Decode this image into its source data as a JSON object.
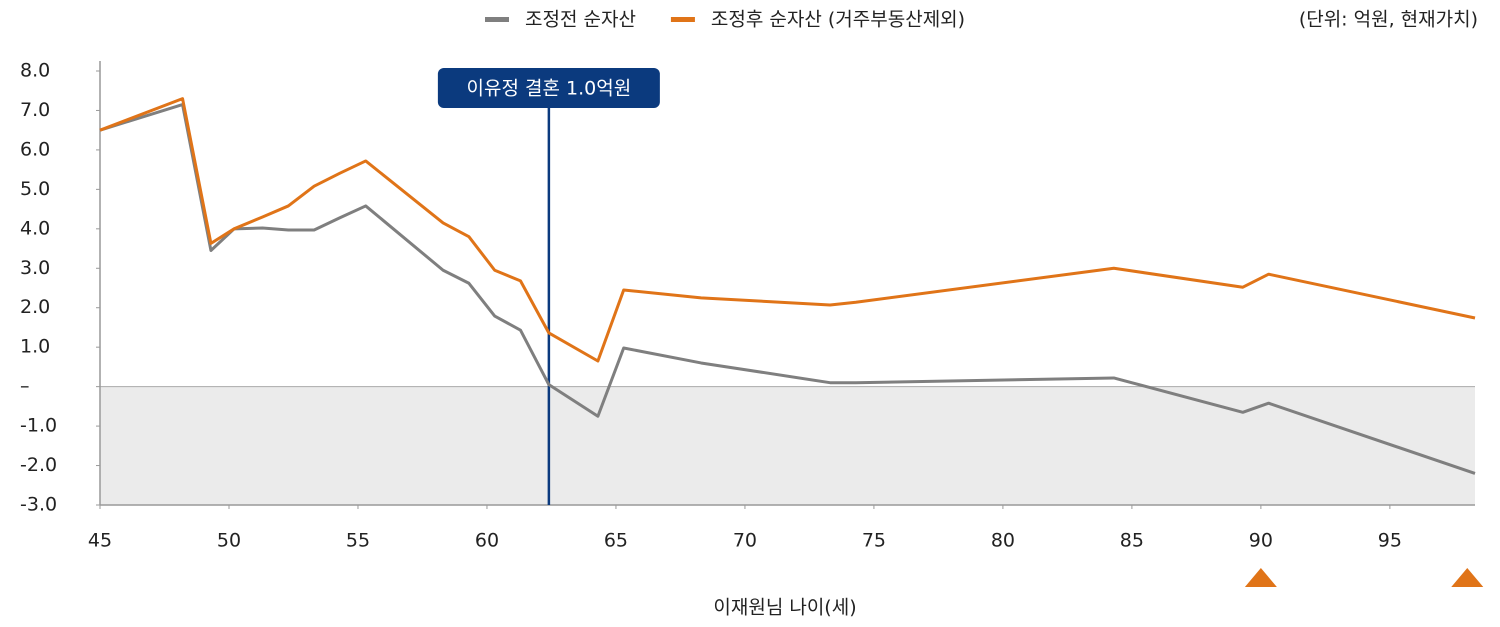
{
  "chart_data": {
    "type": "line",
    "unit_note": "(단위: 억원, 현재가치)",
    "x_label": "이재원님 나이(세)",
    "x": [
      45,
      48.2,
      49.3,
      50.2,
      51.3,
      52.3,
      53.3,
      54.3,
      55.3,
      58.3,
      59.3,
      60.3,
      61.3,
      62.4,
      64.3,
      65.3,
      68.3,
      73.3,
      74.3,
      84.3,
      89.3,
      90.3,
      98.3
    ],
    "series": [
      {
        "name": "조정전 순자산",
        "color": "#7f7f7f",
        "values": [
          6.5,
          7.15,
          3.45,
          4.0,
          4.02,
          3.97,
          3.97,
          4.28,
          4.58,
          2.95,
          2.62,
          1.79,
          1.43,
          0.05,
          -0.75,
          0.98,
          0.6,
          0.1,
          0.1,
          0.22,
          -0.65,
          -0.42,
          -2.2
        ]
      },
      {
        "name": "조정후 순자산 (거주부동산제외)",
        "color": "#e07418",
        "values": [
          6.5,
          7.3,
          3.63,
          4.0,
          4.3,
          4.58,
          5.08,
          5.41,
          5.72,
          4.15,
          3.8,
          2.95,
          2.68,
          1.36,
          0.65,
          2.45,
          2.25,
          2.07,
          2.14,
          3.0,
          2.52,
          2.85,
          1.74
        ]
      }
    ],
    "annotation": {
      "x": 62.4,
      "text": "이유정 결혼 1.0억원"
    },
    "event_markers": [
      90,
      98
    ],
    "xlim": [
      45,
      98.3
    ],
    "xticks": [
      45,
      50,
      55,
      60,
      65,
      70,
      75,
      80,
      85,
      90,
      95
    ],
    "ylim": [
      -3,
      8
    ],
    "yticks": [
      {
        "value": -3,
        "label": "-3.0"
      },
      {
        "value": -2,
        "label": "-2.0"
      },
      {
        "value": -1,
        "label": "-1.0"
      },
      {
        "value": 0,
        "label": "–"
      },
      {
        "value": 1,
        "label": "1.0"
      },
      {
        "value": 2,
        "label": "2.0"
      },
      {
        "value": 3,
        "label": "3.0"
      },
      {
        "value": 4,
        "label": "4.0"
      },
      {
        "value": 5,
        "label": "5.0"
      },
      {
        "value": 6,
        "label": "6.0"
      },
      {
        "value": 7,
        "label": "7.0"
      },
      {
        "value": 8,
        "label": "8.0"
      }
    ],
    "negative_shading": "#ebebeb",
    "annotation_color": "#0b3a7e",
    "marker_color": "#e07418"
  }
}
